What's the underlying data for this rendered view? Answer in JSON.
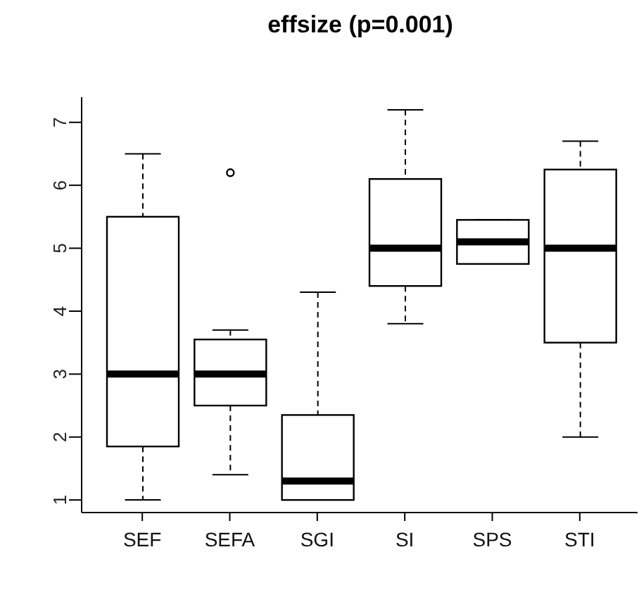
{
  "chart_data": {
    "type": "box",
    "title": "effsize (p=0.001)",
    "categories": [
      "SEF",
      "SEFA",
      "SGI",
      "SI",
      "SPS",
      "STI"
    ],
    "boxes": [
      {
        "low": 1.0,
        "q1": 1.85,
        "median": 3.0,
        "q3": 5.5,
        "high": 6.5
      },
      {
        "low": 1.4,
        "q1": 2.5,
        "median": 3.0,
        "q3": 3.55,
        "high": 3.7,
        "outliers": [
          6.2
        ]
      },
      {
        "low": 1.0,
        "q1": 1.0,
        "median": 1.3,
        "q3": 2.35,
        "high": 4.3
      },
      {
        "low": 3.8,
        "q1": 4.4,
        "median": 5.0,
        "q3": 6.1,
        "high": 7.2
      },
      {
        "low": 4.75,
        "q1": 4.75,
        "median": 5.1,
        "q3": 5.45,
        "high": 5.45
      },
      {
        "low": 2.0,
        "q1": 3.5,
        "median": 5.0,
        "q3": 6.25,
        "high": 6.7
      }
    ],
    "ylim": [
      0.8,
      7.4
    ],
    "yticks": [
      1,
      2,
      3,
      4,
      5,
      6,
      7
    ]
  }
}
